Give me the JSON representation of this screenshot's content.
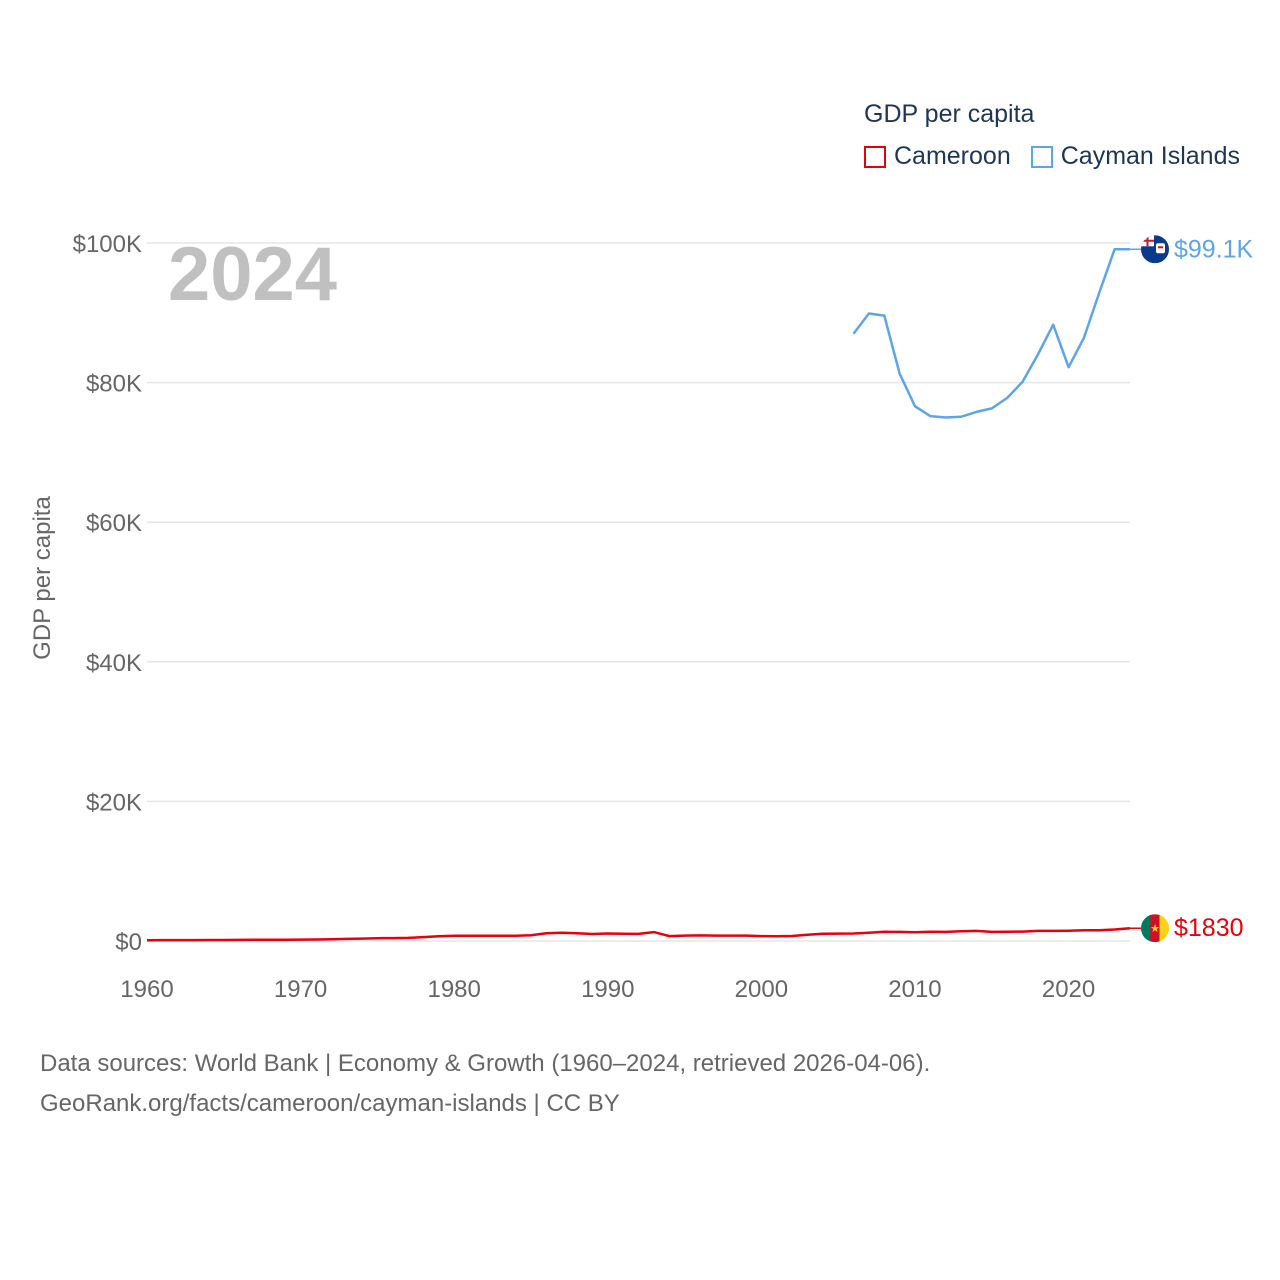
{
  "legend": {
    "title": "GDP per capita",
    "items": [
      {
        "label": "Cameroon",
        "color": "#e8000b"
      },
      {
        "label": "Cayman Islands",
        "color": "#5da5e8"
      }
    ]
  },
  "source": {
    "line1": "Data sources: World Bank | Economy & Growth (1960–2024, retrieved 2026-04-06).",
    "line2": "GeoRank.org/facts/cameroon/cayman-islands | CC BY"
  },
  "chart_data": {
    "type": "line",
    "title": "GDP per capita",
    "year_label": "2024",
    "xlabel": "",
    "ylabel": "GDP per capita",
    "xlim": [
      1960,
      2024
    ],
    "ylim": [
      0,
      100000
    ],
    "x_ticks": [
      "1960",
      "1970",
      "1980",
      "1990",
      "2000",
      "2010",
      "2020"
    ],
    "y_ticks": [
      {
        "value": 0,
        "label": "$0"
      },
      {
        "value": 20000,
        "label": "$20K"
      },
      {
        "value": 40000,
        "label": "$40K"
      },
      {
        "value": 60000,
        "label": "$60K"
      },
      {
        "value": 80000,
        "label": "$80K"
      },
      {
        "value": 100000,
        "label": "$100K"
      }
    ],
    "grid": true,
    "legend_position": "top-right",
    "series": [
      {
        "name": "Cameroon",
        "color": "#e8000b",
        "end_label": "$1830",
        "x": [
          1960,
          1961,
          1962,
          1963,
          1964,
          1965,
          1966,
          1967,
          1968,
          1969,
          1970,
          1971,
          1972,
          1973,
          1974,
          1975,
          1976,
          1977,
          1978,
          1979,
          1980,
          1981,
          1982,
          1983,
          1984,
          1985,
          1986,
          1987,
          1988,
          1989,
          1990,
          1991,
          1992,
          1993,
          1994,
          1995,
          1996,
          1997,
          1998,
          1999,
          2000,
          2001,
          2002,
          2003,
          2004,
          2005,
          2006,
          2007,
          2008,
          2009,
          2010,
          2011,
          2012,
          2013,
          2014,
          2015,
          2016,
          2017,
          2018,
          2019,
          2020,
          2021,
          2022,
          2023,
          2024
        ],
        "values": [
          120,
          125,
          130,
          135,
          140,
          145,
          155,
          165,
          175,
          185,
          200,
          220,
          250,
          300,
          350,
          400,
          420,
          450,
          560,
          680,
          760,
          760,
          740,
          740,
          760,
          820,
          1120,
          1180,
          1120,
          1000,
          1080,
          1040,
          1020,
          1280,
          700,
          770,
          800,
          780,
          770,
          770,
          700,
          690,
          720,
          900,
          1050,
          1060,
          1080,
          1180,
          1320,
          1300,
          1250,
          1320,
          1300,
          1400,
          1450,
          1300,
          1330,
          1350,
          1450,
          1450,
          1470,
          1550,
          1550,
          1650,
          1830
        ]
      },
      {
        "name": "Cayman Islands",
        "color": "#5da5e8",
        "end_label": "$99.1K",
        "x": [
          2006,
          2007,
          2008,
          2009,
          2010,
          2011,
          2012,
          2013,
          2014,
          2015,
          2016,
          2017,
          2018,
          2019,
          2020,
          2021,
          2022,
          2023,
          2024
        ],
        "values": [
          87000,
          89900,
          89600,
          81300,
          76600,
          75200,
          75000,
          75100,
          75800,
          76300,
          77800,
          80100,
          84000,
          88300,
          82200,
          86400,
          92900,
          99100,
          99100
        ]
      }
    ]
  }
}
